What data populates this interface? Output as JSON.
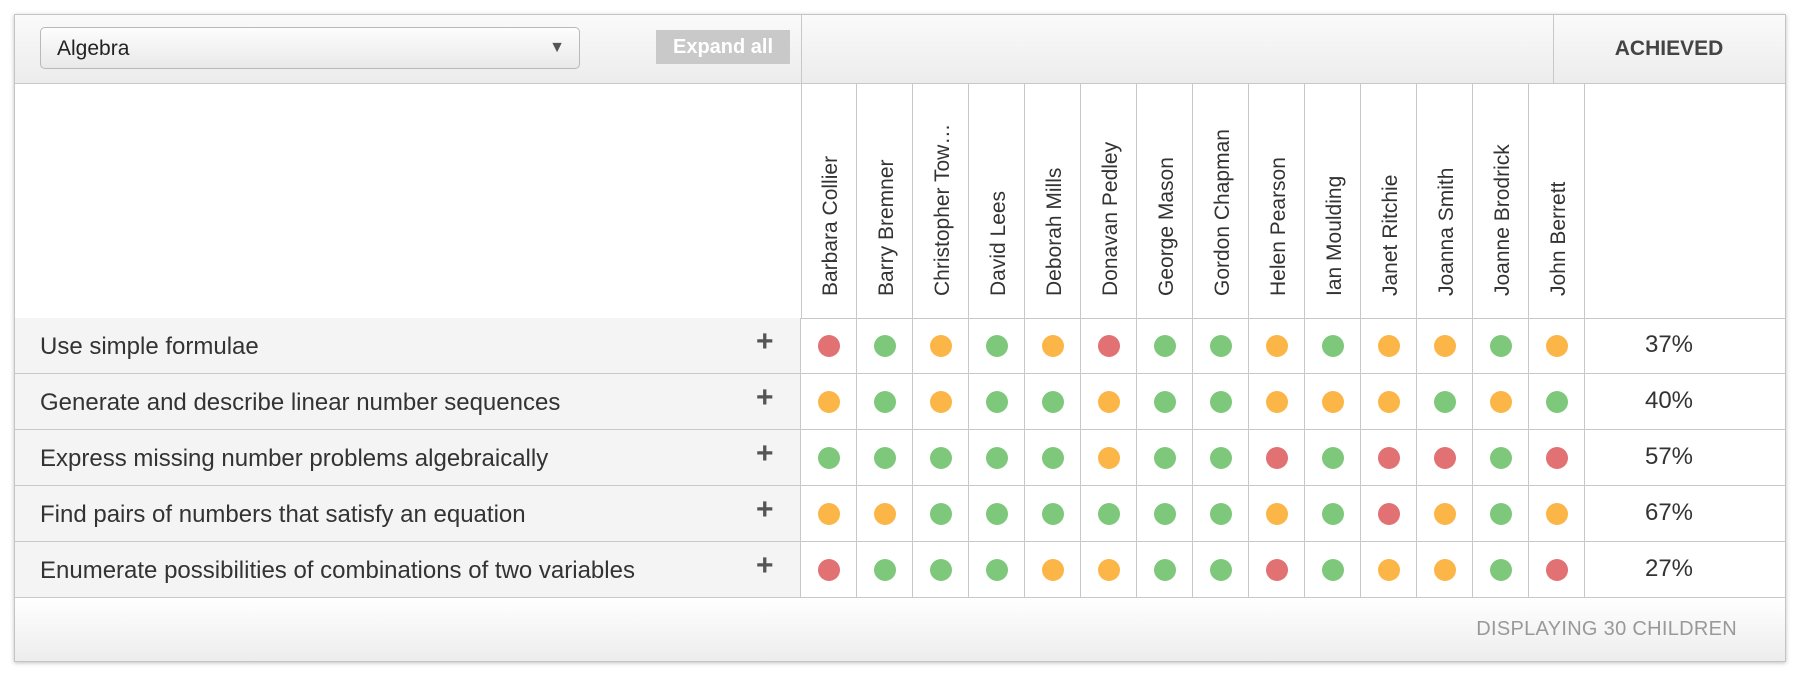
{
  "header": {
    "subject_select": "Algebra",
    "expand_all_label": "Expand all",
    "achieved_label": "ACHIEVED"
  },
  "students": [
    "Barbara Collier",
    "Barry Bremner",
    "Christopher Tow…",
    "David Lees",
    "Deborah Mills",
    "Donavan Pedley",
    "George Mason",
    "Gordon Chapman",
    "Helen Pearson",
    "Ian Moulding",
    "Janet Ritchie",
    "Joanna Smith",
    "Joanne Brodrick",
    "John Berrett"
  ],
  "status_colors": {
    "red": "#e27173",
    "amber": "#fbb647",
    "green": "#7ec87c"
  },
  "objectives": [
    {
      "label": "Use simple formulae",
      "expand": "+",
      "statuses": [
        "red",
        "green",
        "amber",
        "green",
        "amber",
        "red",
        "green",
        "green",
        "amber",
        "green",
        "amber",
        "amber",
        "green",
        "amber"
      ],
      "achieved": "37%"
    },
    {
      "label": "Generate and describe linear number sequences",
      "expand": "+",
      "statuses": [
        "amber",
        "green",
        "amber",
        "green",
        "green",
        "amber",
        "green",
        "green",
        "amber",
        "amber",
        "amber",
        "green",
        "amber",
        "green"
      ],
      "achieved": "40%"
    },
    {
      "label": "Express missing number problems algebraically",
      "expand": "+",
      "statuses": [
        "green",
        "green",
        "green",
        "green",
        "green",
        "amber",
        "green",
        "green",
        "red",
        "green",
        "red",
        "red",
        "green",
        "red"
      ],
      "achieved": "57%"
    },
    {
      "label": "Find pairs of numbers that satisfy an equation",
      "expand": "+",
      "statuses": [
        "amber",
        "amber",
        "green",
        "green",
        "green",
        "green",
        "green",
        "green",
        "amber",
        "green",
        "red",
        "amber",
        "green",
        "amber"
      ],
      "achieved": "67%"
    },
    {
      "label": "Enumerate possibilities of combinations of two variables",
      "expand": "+",
      "statuses": [
        "red",
        "green",
        "green",
        "green",
        "amber",
        "amber",
        "green",
        "green",
        "red",
        "green",
        "amber",
        "amber",
        "green",
        "red"
      ],
      "achieved": "27%"
    }
  ],
  "footer": {
    "count_text": "DISPLAYING 30 CHILDREN"
  }
}
